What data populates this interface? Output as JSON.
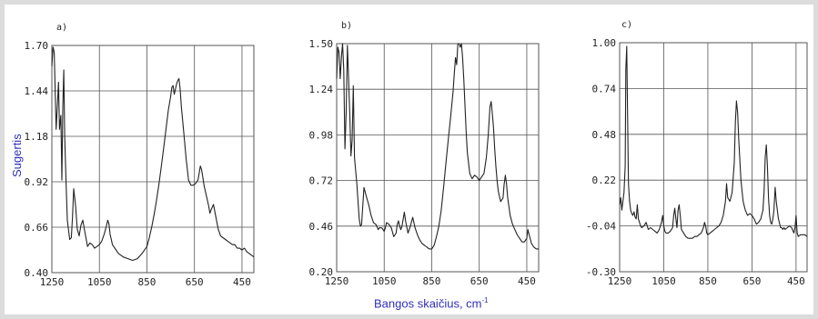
{
  "figure": {
    "y_axis_label": "Sugertis",
    "x_axis_label": "Bangos skaičius, cm",
    "x_axis_label_superscript": "-1",
    "colors": {
      "label": "#2f2fb8",
      "line": "#222222",
      "grid": "#555555",
      "background": "#ffffff"
    }
  },
  "chart_data": [
    {
      "type": "line",
      "title": "a)",
      "xlim": [
        1250,
        400
      ],
      "ylim": [
        0.4,
        1.7
      ],
      "x_ticks": [
        "1250",
        "1050",
        "850",
        "650",
        "450"
      ],
      "x_tick_values": [
        1250,
        1050,
        850,
        650,
        450
      ],
      "y_ticks": [
        "1.70",
        "1.44",
        "1.18",
        "0.92",
        "0.66",
        "0.40"
      ],
      "y_tick_values": [
        1.7,
        1.44,
        1.18,
        0.92,
        0.66,
        0.4
      ],
      "grid": true,
      "series": [
        {
          "x": [
            1250,
            1245,
            1240,
            1232,
            1228,
            1222,
            1218,
            1212,
            1208,
            1204,
            1200,
            1196,
            1190,
            1185,
            1175,
            1168,
            1163,
            1158,
            1150,
            1143,
            1135,
            1128,
            1120,
            1112,
            1100,
            1090,
            1080,
            1070,
            1060,
            1050,
            1040,
            1030,
            1020,
            1015,
            1010,
            1005,
            995,
            985,
            970,
            950,
            930,
            910,
            890,
            870,
            850,
            840,
            830,
            820,
            810,
            800,
            790,
            780,
            770,
            760,
            750,
            745,
            740,
            735,
            730,
            725,
            720,
            715,
            710,
            705,
            695,
            685,
            675,
            665,
            655,
            645,
            640,
            635,
            630,
            625,
            620,
            615,
            610,
            600,
            590,
            585,
            580,
            570,
            560,
            550,
            540,
            530,
            520,
            510,
            500,
            490,
            480,
            470,
            460,
            450,
            440,
            430,
            420,
            410,
            400
          ],
          "y": [
            1.58,
            1.69,
            1.66,
            1.22,
            1.32,
            1.49,
            1.22,
            1.3,
            0.93,
            1.34,
            1.56,
            1.18,
            0.9,
            0.7,
            0.59,
            0.6,
            0.72,
            0.88,
            0.78,
            0.65,
            0.61,
            0.67,
            0.7,
            0.64,
            0.55,
            0.57,
            0.56,
            0.54,
            0.55,
            0.56,
            0.58,
            0.62,
            0.67,
            0.7,
            0.68,
            0.62,
            0.56,
            0.54,
            0.51,
            0.49,
            0.48,
            0.47,
            0.48,
            0.51,
            0.55,
            0.6,
            0.66,
            0.73,
            0.81,
            0.9,
            1.0,
            1.11,
            1.22,
            1.33,
            1.41,
            1.46,
            1.47,
            1.42,
            1.45,
            1.48,
            1.5,
            1.51,
            1.45,
            1.35,
            1.2,
            1.05,
            0.93,
            0.9,
            0.9,
            0.91,
            0.92,
            0.93,
            0.97,
            1.01,
            0.99,
            0.95,
            0.9,
            0.84,
            0.78,
            0.74,
            0.76,
            0.79,
            0.72,
            0.65,
            0.61,
            0.6,
            0.59,
            0.58,
            0.57,
            0.56,
            0.56,
            0.54,
            0.54,
            0.53,
            0.54,
            0.52,
            0.51,
            0.5,
            0.49
          ]
        }
      ]
    },
    {
      "type": "line",
      "title": "b)",
      "xlim": [
        1250,
        400
      ],
      "ylim": [
        0.2,
        1.5
      ],
      "x_ticks": [
        "1250",
        "1050",
        "850",
        "650",
        "450"
      ],
      "x_tick_values": [
        1250,
        1050,
        850,
        650,
        450
      ],
      "y_ticks": [
        "1.50",
        "1.24",
        "0.98",
        "0.72",
        "0.46",
        "0.20"
      ],
      "y_tick_values": [
        1.5,
        1.24,
        0.98,
        0.72,
        0.46,
        0.2
      ],
      "grid": true,
      "series": [
        {
          "x": [
            1250,
            1245,
            1240,
            1235,
            1230,
            1225,
            1220,
            1215,
            1210,
            1205,
            1200,
            1195,
            1190,
            1185,
            1180,
            1175,
            1165,
            1160,
            1155,
            1150,
            1145,
            1135,
            1125,
            1115,
            1105,
            1095,
            1085,
            1075,
            1070,
            1060,
            1050,
            1045,
            1040,
            1030,
            1020,
            1010,
            1000,
            995,
            990,
            985,
            980,
            975,
            970,
            965,
            960,
            950,
            940,
            930,
            920,
            910,
            900,
            890,
            880,
            870,
            860,
            850,
            840,
            830,
            820,
            810,
            800,
            790,
            780,
            770,
            760,
            755,
            750,
            745,
            740,
            735,
            730,
            725,
            720,
            715,
            710,
            705,
            700,
            690,
            680,
            670,
            660,
            650,
            640,
            630,
            620,
            612,
            605,
            600,
            595,
            590,
            585,
            580,
            575,
            570,
            560,
            550,
            545,
            540,
            535,
            530,
            520,
            510,
            500,
            490,
            480,
            470,
            460,
            450,
            445,
            440,
            430,
            420,
            410,
            400
          ],
          "y": [
            1.3,
            1.48,
            1.45,
            1.3,
            1.42,
            1.5,
            1.35,
            0.9,
            1.1,
            1.49,
            1.3,
            1.1,
            0.86,
            0.95,
            1.26,
            0.85,
            0.7,
            0.6,
            0.5,
            0.46,
            0.47,
            0.68,
            0.63,
            0.58,
            0.52,
            0.48,
            0.47,
            0.44,
            0.45,
            0.45,
            0.43,
            0.45,
            0.48,
            0.47,
            0.45,
            0.4,
            0.42,
            0.47,
            0.49,
            0.46,
            0.44,
            0.46,
            0.5,
            0.54,
            0.49,
            0.42,
            0.46,
            0.51,
            0.45,
            0.41,
            0.38,
            0.36,
            0.35,
            0.34,
            0.33,
            0.33,
            0.35,
            0.4,
            0.46,
            0.55,
            0.68,
            0.82,
            0.96,
            1.09,
            1.23,
            1.33,
            1.42,
            1.38,
            1.5,
            1.5,
            1.48,
            1.5,
            1.42,
            1.3,
            1.15,
            1.0,
            0.88,
            0.76,
            0.73,
            0.75,
            0.74,
            0.72,
            0.74,
            0.76,
            0.85,
            0.98,
            1.14,
            1.17,
            1.1,
            1.02,
            0.9,
            0.8,
            0.72,
            0.66,
            0.6,
            0.62,
            0.7,
            0.75,
            0.7,
            0.62,
            0.52,
            0.47,
            0.44,
            0.41,
            0.39,
            0.37,
            0.37,
            0.39,
            0.44,
            0.41,
            0.36,
            0.34,
            0.33,
            0.33
          ]
        }
      ]
    },
    {
      "type": "line",
      "title": "c)",
      "xlim": [
        1250,
        400
      ],
      "ylim": [
        -0.3,
        1.0
      ],
      "x_ticks": [
        "1250",
        "1050",
        "850",
        "650",
        "450"
      ],
      "x_tick_values": [
        1250,
        1050,
        850,
        650,
        450
      ],
      "y_ticks": [
        "1.00",
        "0.74",
        "0.48",
        "0.22",
        "-0.04",
        "-0.30"
      ],
      "y_tick_values": [
        1.0,
        0.74,
        0.48,
        0.22,
        -0.04,
        -0.3
      ],
      "grid": true,
      "series": [
        {
          "x": [
            1250,
            1245,
            1240,
            1235,
            1230,
            1225,
            1222,
            1218,
            1214,
            1210,
            1205,
            1200,
            1195,
            1190,
            1185,
            1180,
            1175,
            1170,
            1165,
            1160,
            1155,
            1150,
            1140,
            1130,
            1120,
            1110,
            1100,
            1090,
            1080,
            1070,
            1060,
            1055,
            1050,
            1045,
            1040,
            1030,
            1020,
            1010,
            1005,
            1000,
            995,
            990,
            985,
            980,
            975,
            970,
            960,
            950,
            940,
            930,
            920,
            910,
            900,
            890,
            880,
            870,
            865,
            860,
            855,
            850,
            840,
            830,
            820,
            810,
            800,
            790,
            780,
            770,
            765,
            760,
            750,
            740,
            730,
            725,
            720,
            715,
            710,
            700,
            690,
            680,
            670,
            660,
            650,
            640,
            630,
            620,
            610,
            600,
            595,
            590,
            585,
            580,
            575,
            570,
            565,
            560,
            555,
            550,
            545,
            540,
            530,
            520,
            515,
            510,
            505,
            500,
            490,
            480,
            470,
            460,
            455,
            450,
            445,
            440,
            430,
            420,
            410,
            400
          ],
          "y": [
            0.08,
            0.12,
            0.05,
            0.1,
            0.15,
            0.3,
            0.85,
            0.98,
            0.6,
            0.2,
            0.1,
            0.05,
            0.03,
            0.02,
            0.04,
            0.01,
            0.0,
            0.08,
            0.0,
            -0.02,
            -0.04,
            -0.05,
            -0.04,
            -0.02,
            -0.06,
            -0.05,
            -0.06,
            -0.07,
            -0.08,
            -0.06,
            -0.02,
            0.02,
            -0.04,
            -0.07,
            -0.08,
            -0.08,
            -0.07,
            -0.05,
            0.02,
            0.06,
            0.0,
            -0.05,
            0.05,
            0.08,
            0.02,
            -0.06,
            -0.08,
            -0.1,
            -0.11,
            -0.11,
            -0.11,
            -0.1,
            -0.1,
            -0.09,
            -0.08,
            -0.05,
            -0.02,
            -0.04,
            -0.08,
            -0.09,
            -0.08,
            -0.07,
            -0.06,
            -0.05,
            -0.04,
            -0.02,
            0.02,
            0.1,
            0.2,
            0.12,
            0.1,
            0.15,
            0.32,
            0.55,
            0.67,
            0.6,
            0.45,
            0.22,
            0.1,
            0.05,
            0.02,
            0.03,
            0.02,
            0.0,
            -0.03,
            -0.02,
            0.0,
            0.05,
            0.15,
            0.35,
            0.42,
            0.3,
            0.12,
            0.02,
            -0.02,
            -0.03,
            0.0,
            0.05,
            0.18,
            0.1,
            0.0,
            -0.05,
            -0.05,
            -0.06,
            -0.05,
            -0.06,
            -0.05,
            -0.04,
            -0.05,
            -0.08,
            -0.05,
            0.02,
            -0.08,
            -0.1,
            -0.09,
            -0.09,
            -0.09,
            -0.1
          ]
        }
      ]
    }
  ]
}
